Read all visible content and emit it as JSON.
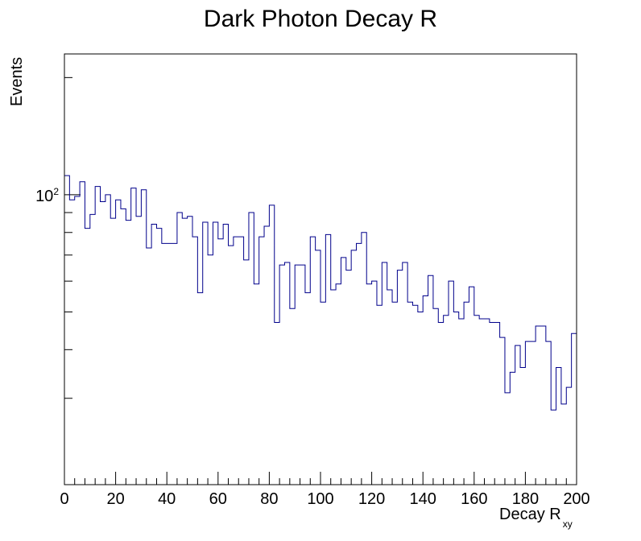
{
  "chart_data": {
    "type": "histogram",
    "title": "Dark Photon Decay R",
    "xlabel": "Decay R",
    "xlabel_subscript": "xy",
    "ylabel": "Events",
    "xlim": [
      0,
      200
    ],
    "ylim": [
      18,
      230
    ],
    "y_scale": "log",
    "x_major_ticks": [
      0,
      20,
      40,
      60,
      80,
      100,
      120,
      140,
      160,
      180,
      200
    ],
    "x_tick_labels": [
      "0",
      "20",
      "40",
      "60",
      "80",
      "100",
      "120",
      "140",
      "160",
      "180",
      "200"
    ],
    "y_tick_label_base": "10",
    "y_tick_label_exponent": "2",
    "y_minor_ticks": [
      30,
      40,
      50,
      60,
      70,
      80,
      90,
      200
    ],
    "grid": false,
    "line_color": "#00008b",
    "bin_width": 2,
    "bin_edges_start": 0,
    "values": [
      112,
      97,
      99,
      108,
      82,
      89,
      105,
      96,
      100,
      87,
      97,
      92,
      86,
      104,
      88,
      103,
      73,
      84,
      82,
      75,
      75,
      75,
      90,
      87,
      88,
      78,
      56,
      85,
      70,
      85,
      77,
      84,
      74,
      78,
      78,
      68,
      90,
      59,
      78,
      83,
      94,
      47,
      66,
      67,
      51,
      66,
      66,
      56,
      78,
      72,
      53,
      79,
      57,
      59,
      69,
      64,
      72,
      75,
      80,
      59,
      60,
      52,
      67,
      57,
      53,
      64,
      67,
      53,
      52,
      50,
      55,
      62,
      51,
      47,
      49,
      60,
      50,
      48,
      53,
      58,
      49,
      48,
      48,
      47,
      47,
      43,
      31,
      35,
      41,
      36,
      42,
      42,
      46,
      46,
      42,
      28,
      36,
      29,
      32,
      44
    ]
  }
}
